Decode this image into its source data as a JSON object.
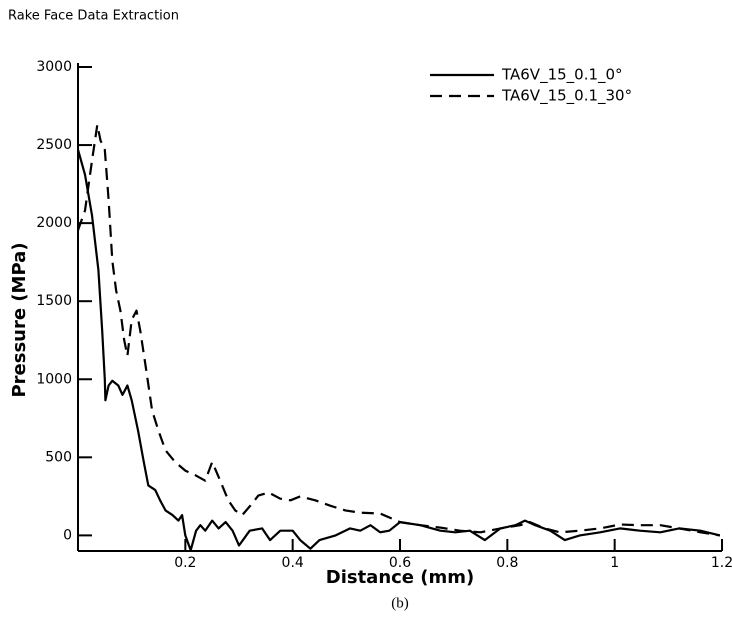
{
  "chart_data": {
    "type": "line",
    "title": "Rake Face Data Extraction",
    "caption": "(b)",
    "x_label": "Distance (mm)",
    "y_label": "Pressure (MPa)",
    "xlim": [
      0,
      1.2
    ],
    "ylim": [
      -100,
      3000
    ],
    "xticks": [
      0.2,
      0.4,
      0.6,
      0.8,
      1,
      1.2
    ],
    "yticks": [
      0,
      500,
      1000,
      1500,
      2000,
      2500,
      3000
    ],
    "legend": "top-right",
    "series": [
      {
        "name": "TA6V_15_0.1_0°",
        "color": "#000000",
        "line_style": "solid",
        "x": [
          0,
          0.013,
          0.026,
          0.038,
          0.045,
          0.05,
          0.051,
          0.057,
          0.064,
          0.075,
          0.083,
          0.092,
          0.1,
          0.112,
          0.122,
          0.131,
          0.144,
          0.153,
          0.163,
          0.176,
          0.187,
          0.194,
          0.2,
          0.21,
          0.22,
          0.228,
          0.237,
          0.25,
          0.262,
          0.275,
          0.288,
          0.3,
          0.32,
          0.343,
          0.358,
          0.377,
          0.4,
          0.414,
          0.433,
          0.45,
          0.48,
          0.507,
          0.526,
          0.545,
          0.563,
          0.58,
          0.6,
          0.638,
          0.675,
          0.703,
          0.73,
          0.758,
          0.787,
          0.815,
          0.833,
          0.852,
          0.88,
          0.907,
          0.935,
          0.973,
          1.01,
          1.047,
          1.085,
          1.12,
          1.16,
          1.196
        ],
        "values": [
          2470,
          2310,
          2050,
          1700,
          1310,
          1000,
          865,
          960,
          990,
          960,
          900,
          960,
          865,
          670,
          480,
          320,
          290,
          225,
          160,
          130,
          95,
          130,
          0,
          -95,
          30,
          65,
          30,
          95,
          45,
          85,
          30,
          -65,
          30,
          45,
          -30,
          30,
          30,
          -30,
          -85,
          -30,
          0,
          45,
          30,
          65,
          20,
          30,
          85,
          65,
          30,
          20,
          30,
          -30,
          45,
          65,
          95,
          65,
          30,
          -30,
          0,
          20,
          45,
          30,
          20,
          45,
          30,
          0
        ]
      },
      {
        "name": "TA6V_15_0.1_30°",
        "color": "#000000",
        "line_style": "dashed",
        "x": [
          0,
          0.013,
          0.026,
          0.036,
          0.042,
          0.05,
          0.057,
          0.064,
          0.071,
          0.079,
          0.086,
          0.092,
          0.1,
          0.109,
          0.116,
          0.127,
          0.138,
          0.15,
          0.163,
          0.181,
          0.2,
          0.219,
          0.237,
          0.25,
          0.265,
          0.28,
          0.293,
          0.306,
          0.321,
          0.336,
          0.355,
          0.377,
          0.396,
          0.414,
          0.442,
          0.47,
          0.498,
          0.526,
          0.563,
          0.6,
          0.638,
          0.675,
          0.712,
          0.75,
          0.787,
          0.824,
          0.842,
          0.87,
          0.898,
          0.935,
          0.973,
          1.01,
          1.047,
          1.085,
          1.12,
          1.16,
          1.196
        ],
        "values": [
          1955,
          2080,
          2400,
          2630,
          2530,
          2470,
          2150,
          1760,
          1570,
          1440,
          1250,
          1150,
          1380,
          1440,
          1310,
          1060,
          800,
          670,
          545,
          470,
          415,
          385,
          350,
          470,
          350,
          225,
          160,
          130,
          190,
          255,
          275,
          235,
          225,
          250,
          225,
          190,
          160,
          145,
          140,
          85,
          65,
          50,
          30,
          20,
          45,
          65,
          85,
          45,
          20,
          30,
          45,
          70,
          65,
          65,
          45,
          20,
          0
        ]
      }
    ]
  }
}
